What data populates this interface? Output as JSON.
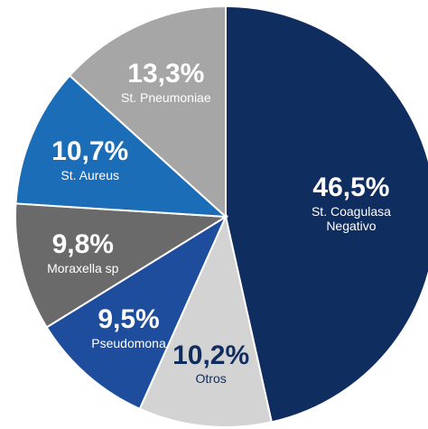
{
  "chart_data": {
    "type": "pie",
    "categories": [
      "St. Coagulasa Negativo",
      "Otros",
      "Pseudomona",
      "Moraxella sp",
      "St. Aureus",
      "St. Pneumoniae"
    ],
    "values": [
      46.5,
      10.2,
      9.5,
      9.8,
      10.7,
      13.3
    ],
    "value_labels": [
      "46,5%",
      "10,2%",
      "9,5%",
      "9,8%",
      "10,7%",
      "13,3%"
    ],
    "colors": [
      "#0f2d5f",
      "#d3d3d3",
      "#1e4d9e",
      "#6a6a6a",
      "#1c6db8",
      "#a6a6a6"
    ]
  }
}
